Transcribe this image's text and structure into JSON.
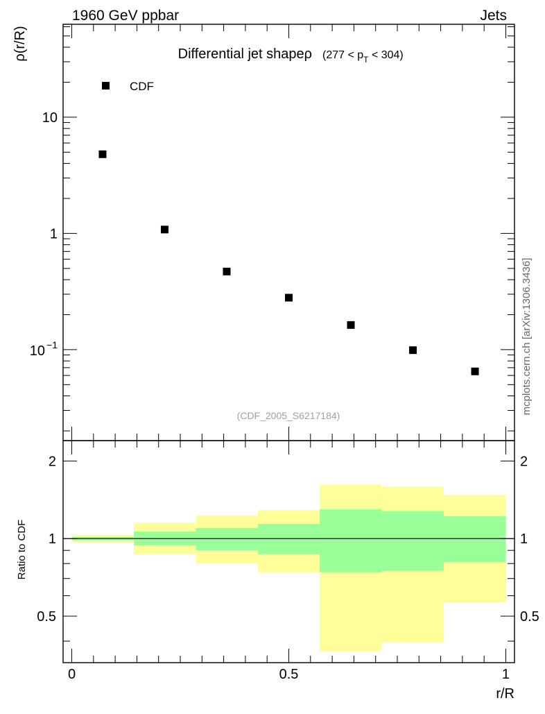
{
  "header": {
    "left": "1960 GeV ppbar",
    "right": "Jets"
  },
  "side_label": "mcplots.cern.ch [arXiv:1306.3436]",
  "watermark": "(CDF_2005_S6217184)",
  "chart_data": [
    {
      "type": "scatter",
      "title_main": "Differential jet shapeρ",
      "title_range_prefix": "(277 < p",
      "title_range_sub": "T",
      "title_range_suffix": " < 304)",
      "ylabel": "ρ(r/R)",
      "y_scale": "log",
      "ylim": [
        0.0165,
        63
      ],
      "y_ticks": [
        {
          "value": 10,
          "label": "10"
        },
        {
          "value": 1,
          "label": "1"
        },
        {
          "value": 0.1,
          "label": "10",
          "sup": "−1"
        }
      ],
      "xlim": [
        -0.02,
        1.02
      ],
      "legend": {
        "position": "top-left",
        "entries": [
          "CDF"
        ]
      },
      "series": [
        {
          "name": "CDF",
          "marker": "square",
          "color": "#000000",
          "x": [
            0.071,
            0.214,
            0.357,
            0.5,
            0.643,
            0.786,
            0.929
          ],
          "y": [
            4.8,
            1.08,
            0.47,
            0.28,
            0.163,
            0.099,
            0.065
          ]
        }
      ]
    },
    {
      "type": "area",
      "ylabel": "Ratio to CDF",
      "xlabel": "r/R",
      "y_scale": "log",
      "ylim": [
        0.33,
        2.4
      ],
      "y_ticks": [
        {
          "value": 2,
          "label": "2"
        },
        {
          "value": 1,
          "label": "1"
        },
        {
          "value": 0.5,
          "label": "0.5"
        }
      ],
      "x_ticks": [
        {
          "value": 0,
          "label": "0"
        },
        {
          "value": 0.5,
          "label": "0.5"
        },
        {
          "value": 1,
          "label": "1"
        }
      ],
      "xlim": [
        -0.02,
        1.02
      ],
      "reference_line": 1,
      "bins": [
        {
          "x0": 0.0,
          "x1": 0.143,
          "inner": [
            0.985,
            1.015
          ],
          "outer": [
            0.965,
            1.035
          ]
        },
        {
          "x0": 0.143,
          "x1": 0.286,
          "inner": [
            0.94,
            1.065
          ],
          "outer": [
            0.87,
            1.15
          ]
        },
        {
          "x0": 0.286,
          "x1": 0.429,
          "inner": [
            0.9,
            1.1
          ],
          "outer": [
            0.8,
            1.23
          ]
        },
        {
          "x0": 0.429,
          "x1": 0.571,
          "inner": [
            0.87,
            1.14
          ],
          "outer": [
            0.74,
            1.29
          ]
        },
        {
          "x0": 0.571,
          "x1": 0.714,
          "inner": [
            0.74,
            1.3
          ],
          "outer": [
            0.365,
            1.62
          ]
        },
        {
          "x0": 0.714,
          "x1": 0.857,
          "inner": [
            0.75,
            1.28
          ],
          "outer": [
            0.395,
            1.59
          ]
        },
        {
          "x0": 0.857,
          "x1": 1.0,
          "inner": [
            0.81,
            1.22
          ],
          "outer": [
            0.565,
            1.48
          ]
        }
      ],
      "colors": {
        "inner": "#99ff99",
        "outer": "#ffff99"
      }
    }
  ]
}
